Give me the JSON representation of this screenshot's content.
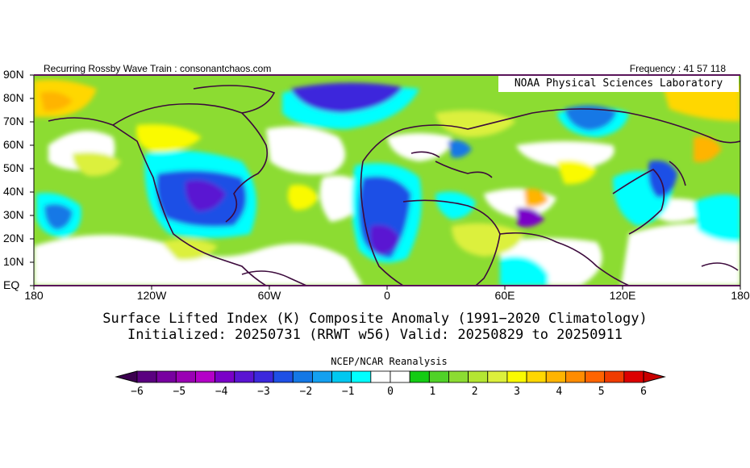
{
  "header": {
    "left": "Recurring Rossby Wave Train : consonantchaos.com",
    "right": "Frequency : 41 57 118"
  },
  "map": {
    "lab_label": "NOAA Physical Sciences Laboratory",
    "lat_labels": [
      "90N",
      "80N",
      "70N",
      "60N",
      "50N",
      "40N",
      "30N",
      "20N",
      "10N",
      "EQ"
    ],
    "lon_labels": [
      "180",
      "120W",
      "60W",
      "0",
      "60E",
      "120E",
      "180"
    ]
  },
  "titles": {
    "line1": "Surface Lifted Index (K) Composite Anomaly (1991−2020 Climatology)",
    "line2": "Initialized: 20250731 (RRWT w56) Valid: 20250829 to 20250911"
  },
  "colorbar": {
    "title": "NCEP/NCAR Reanalysis",
    "tick_labels": [
      "−6",
      "−5",
      "−4",
      "−3",
      "−2",
      "−1",
      "0",
      "1",
      "2",
      "3",
      "4",
      "5",
      "6"
    ],
    "colors": [
      "#5a0080",
      "#7800a0",
      "#9a00b4",
      "#b400c8",
      "#7a00c8",
      "#5a14d2",
      "#3c28dc",
      "#1e50e6",
      "#1478e6",
      "#14a0f0",
      "#00c8f0",
      "#00ffff",
      "#ffffff",
      "#ffffff",
      "#14cc14",
      "#50d228",
      "#8cdc32",
      "#b4e632",
      "#dcf03c",
      "#fafa00",
      "#ffd700",
      "#ffb400",
      "#ff8c00",
      "#ff6400",
      "#f03c00",
      "#dc0000"
    ],
    "under_color": "#3c0050",
    "over_color": "#c80000"
  }
}
